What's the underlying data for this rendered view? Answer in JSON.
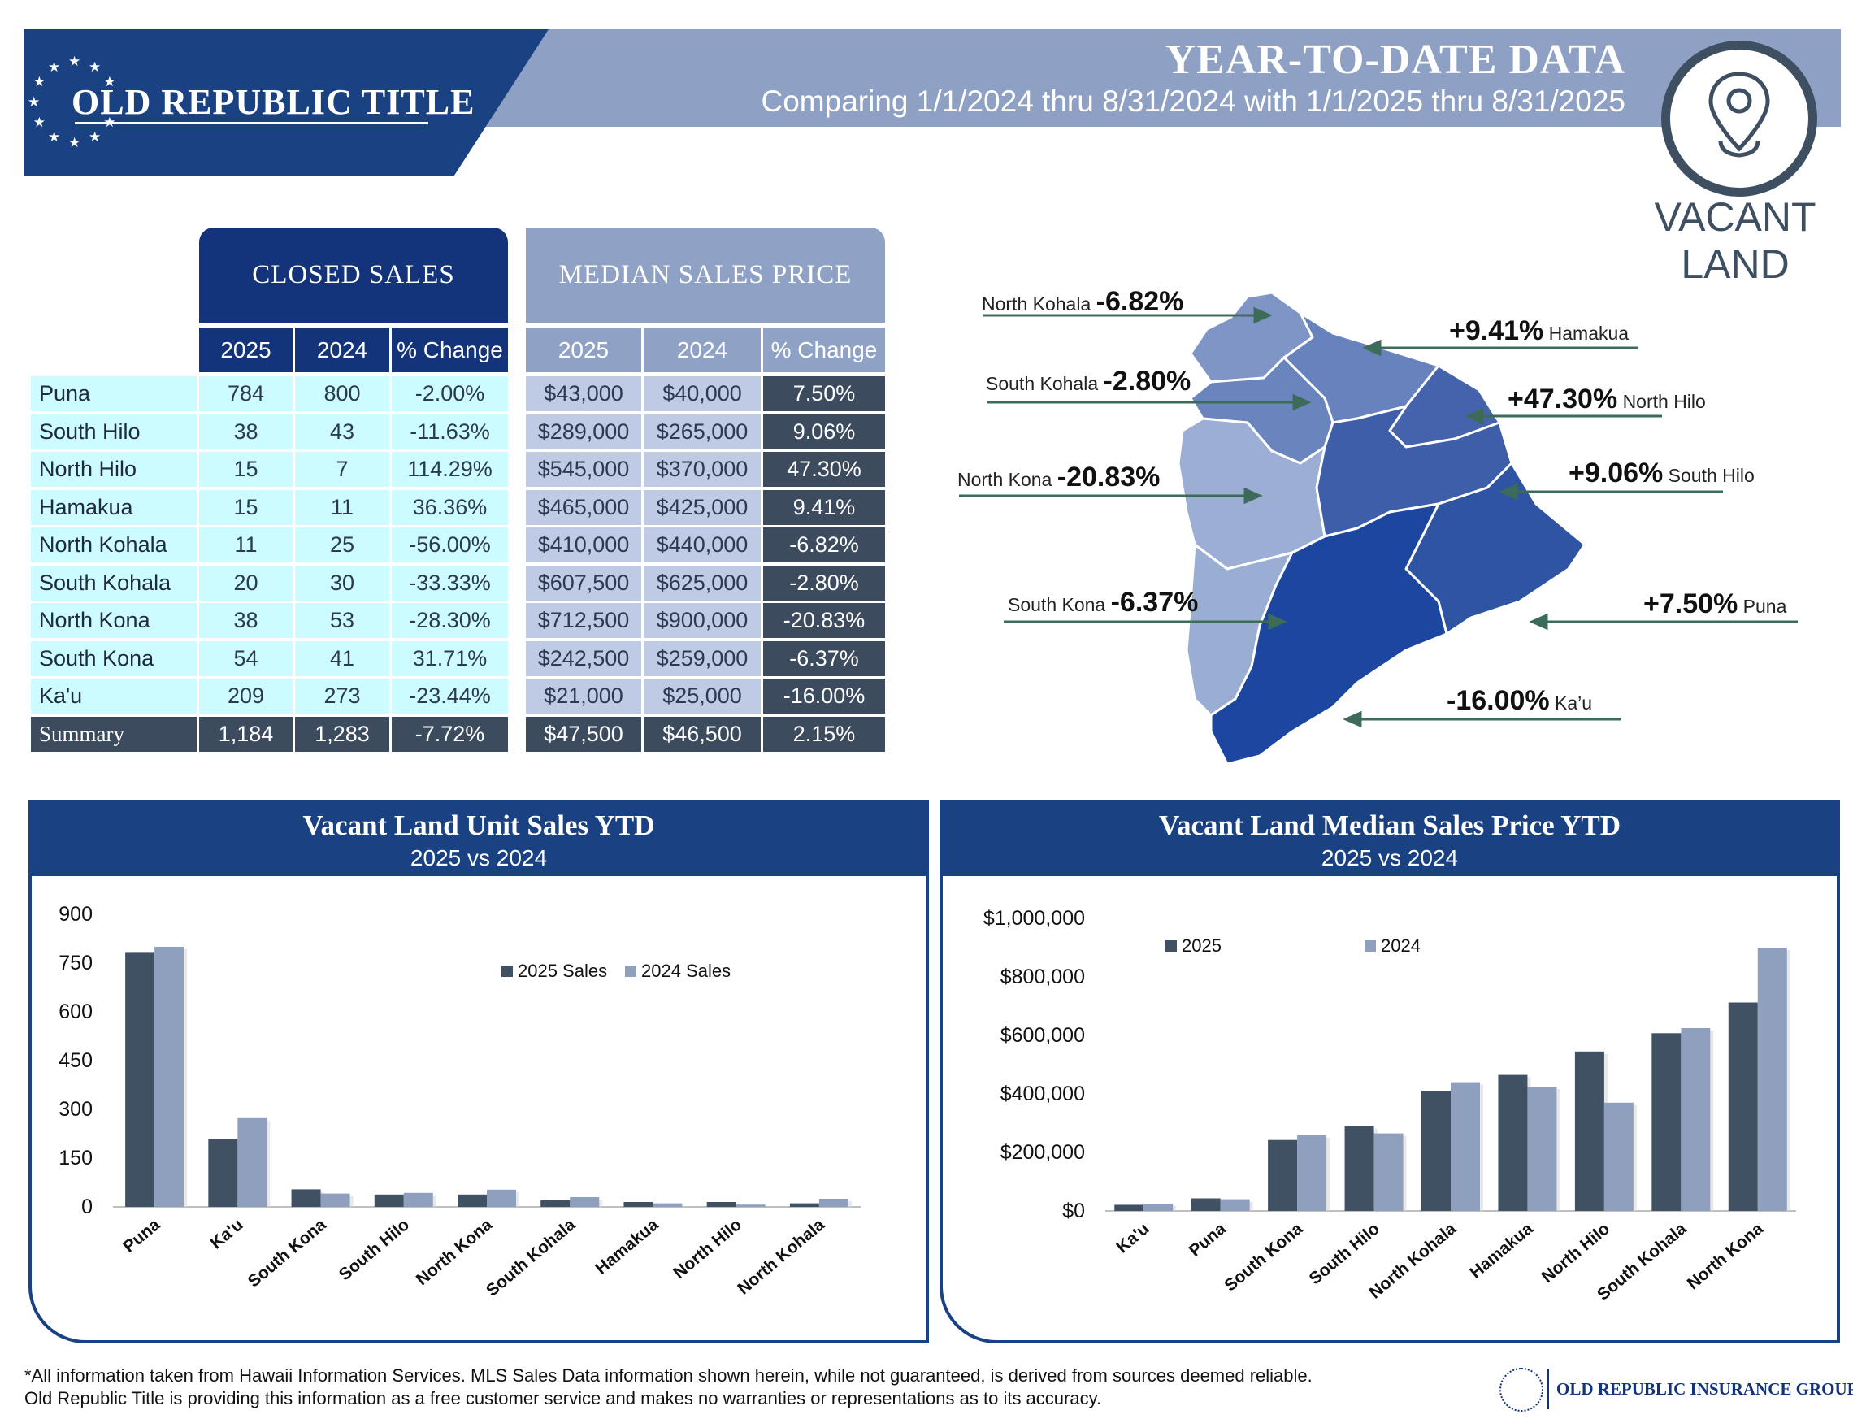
{
  "header": {
    "logo": "OLD REPUBLIC TITLE",
    "title": "YEAR-TO-DATE DATA",
    "subtitle": "Comparing 1/1/2024 thru 8/31/2024 with 1/1/2025 thru 8/31/2025",
    "category_line1": "VACANT",
    "category_line2": "LAND",
    "pin_icon": "location-pin-icon"
  },
  "colors": {
    "navy": "#13337a",
    "brand_blue": "#1a4283",
    "light_blue": "#8fa2c5",
    "row_cyan": "#ccfcff",
    "row_blue": "#bfcbe4",
    "dark_slate": "#3c4b5e",
    "series_2025": "#405164",
    "series_2024": "#8fa0bf"
  },
  "table": {
    "closed_sales_header": "CLOSED SALES",
    "median_price_header": "MEDIAN SALES PRICE",
    "columns": [
      "2025",
      "2024",
      "% Change",
      "2025",
      "2024",
      "% Change"
    ],
    "rows": [
      {
        "area": "Puna",
        "sales_2025": "784",
        "sales_2024": "800",
        "sales_change": "-2.00%",
        "price_2025": "$43,000",
        "price_2024": "$40,000",
        "price_change": "7.50%"
      },
      {
        "area": "South Hilo",
        "sales_2025": "38",
        "sales_2024": "43",
        "sales_change": "-11.63%",
        "price_2025": "$289,000",
        "price_2024": "$265,000",
        "price_change": "9.06%"
      },
      {
        "area": "North Hilo",
        "sales_2025": "15",
        "sales_2024": "7",
        "sales_change": "114.29%",
        "price_2025": "$545,000",
        "price_2024": "$370,000",
        "price_change": "47.30%"
      },
      {
        "area": "Hamakua",
        "sales_2025": "15",
        "sales_2024": "11",
        "sales_change": "36.36%",
        "price_2025": "$465,000",
        "price_2024": "$425,000",
        "price_change": "9.41%"
      },
      {
        "area": "North Kohala",
        "sales_2025": "11",
        "sales_2024": "25",
        "sales_change": "-56.00%",
        "price_2025": "$410,000",
        "price_2024": "$440,000",
        "price_change": "-6.82%"
      },
      {
        "area": "South Kohala",
        "sales_2025": "20",
        "sales_2024": "30",
        "sales_change": "-33.33%",
        "price_2025": "$607,500",
        "price_2024": "$625,000",
        "price_change": "-2.80%"
      },
      {
        "area": "North Kona",
        "sales_2025": "38",
        "sales_2024": "53",
        "sales_change": "-28.30%",
        "price_2025": "$712,500",
        "price_2024": "$900,000",
        "price_change": "-20.83%"
      },
      {
        "area": "South Kona",
        "sales_2025": "54",
        "sales_2024": "41",
        "sales_change": "31.71%",
        "price_2025": "$242,500",
        "price_2024": "$259,000",
        "price_change": "-6.37%"
      },
      {
        "area": "Ka'u",
        "sales_2025": "209",
        "sales_2024": "273",
        "sales_change": "-23.44%",
        "price_2025": "$21,000",
        "price_2024": "$25,000",
        "price_change": "-16.00%"
      }
    ],
    "summary": {
      "area": "Summary",
      "sales_2025": "1,184",
      "sales_2024": "1,283",
      "sales_change": "-7.72%",
      "price_2025": "$47,500",
      "price_2024": "$46,500",
      "price_change": "2.15%"
    }
  },
  "map": {
    "labels": [
      {
        "district": "North Kohala",
        "pct": "-6.82%"
      },
      {
        "district": "Hamakua",
        "pct": "+9.41%"
      },
      {
        "district": "South Kohala",
        "pct": "-2.80%"
      },
      {
        "district": "North Hilo",
        "pct": "+47.30%"
      },
      {
        "district": "North Kona",
        "pct": "-20.83%"
      },
      {
        "district": "South Hilo",
        "pct": "+9.06%"
      },
      {
        "district": "South Kona",
        "pct": "-6.37%"
      },
      {
        "district": "Puna",
        "pct": "+7.50%"
      },
      {
        "district": "Ka’u",
        "pct": "-16.00%"
      }
    ]
  },
  "chart_data": [
    {
      "type": "bar",
      "title": "Vacant Land Unit Sales YTD",
      "subtitle": "2025 vs 2024",
      "categories": [
        "Puna",
        "Ka'u",
        "South Kona",
        "South Hilo",
        "North Kona",
        "South Kohala",
        "Hamakua",
        "North Hilo",
        "North Kohala"
      ],
      "series": [
        {
          "name": "2025 Sales",
          "values": [
            784,
            209,
            54,
            38,
            38,
            20,
            15,
            15,
            11
          ]
        },
        {
          "name": "2024 Sales",
          "values": [
            800,
            273,
            41,
            43,
            53,
            30,
            11,
            7,
            25
          ]
        }
      ],
      "yticks": [
        "900",
        "750",
        "600",
        "450",
        "300",
        "150",
        "0"
      ],
      "ylim": [
        0,
        900
      ],
      "legend": "top-right",
      "grid": false
    },
    {
      "type": "bar",
      "title": "Vacant Land Median Sales Price YTD",
      "subtitle": "2025 vs 2024",
      "categories": [
        "Ka'u",
        "Puna",
        "South Kona",
        "South Hilo",
        "North Kohala",
        "Hamakua",
        "North Hilo",
        "South Kohala",
        "North Kona"
      ],
      "series": [
        {
          "name": "2025",
          "values": [
            21000,
            43000,
            242500,
            289000,
            410000,
            465000,
            545000,
            607500,
            712500
          ]
        },
        {
          "name": "2024",
          "values": [
            25000,
            40000,
            259000,
            265000,
            440000,
            425000,
            370000,
            625000,
            900000
          ]
        }
      ],
      "yticks": [
        "$1,000,000",
        "$800,000",
        "$600,000",
        "$400,000",
        "$200,000",
        "$0"
      ],
      "ylim": [
        0,
        1000000
      ],
      "legend": "top-left",
      "grid": false
    }
  ],
  "footer": {
    "line1": "*All information taken from Hawaii Information Services.  MLS Sales Data information shown herein, while not guaranteed,  is derived from sources deemed reliable.",
    "line2": "Old Republic Title is providing this information as a free customer service and makes no warranties or representations as to its accuracy.",
    "org": "OLD REPUBLIC INSURANCE GROUP"
  }
}
